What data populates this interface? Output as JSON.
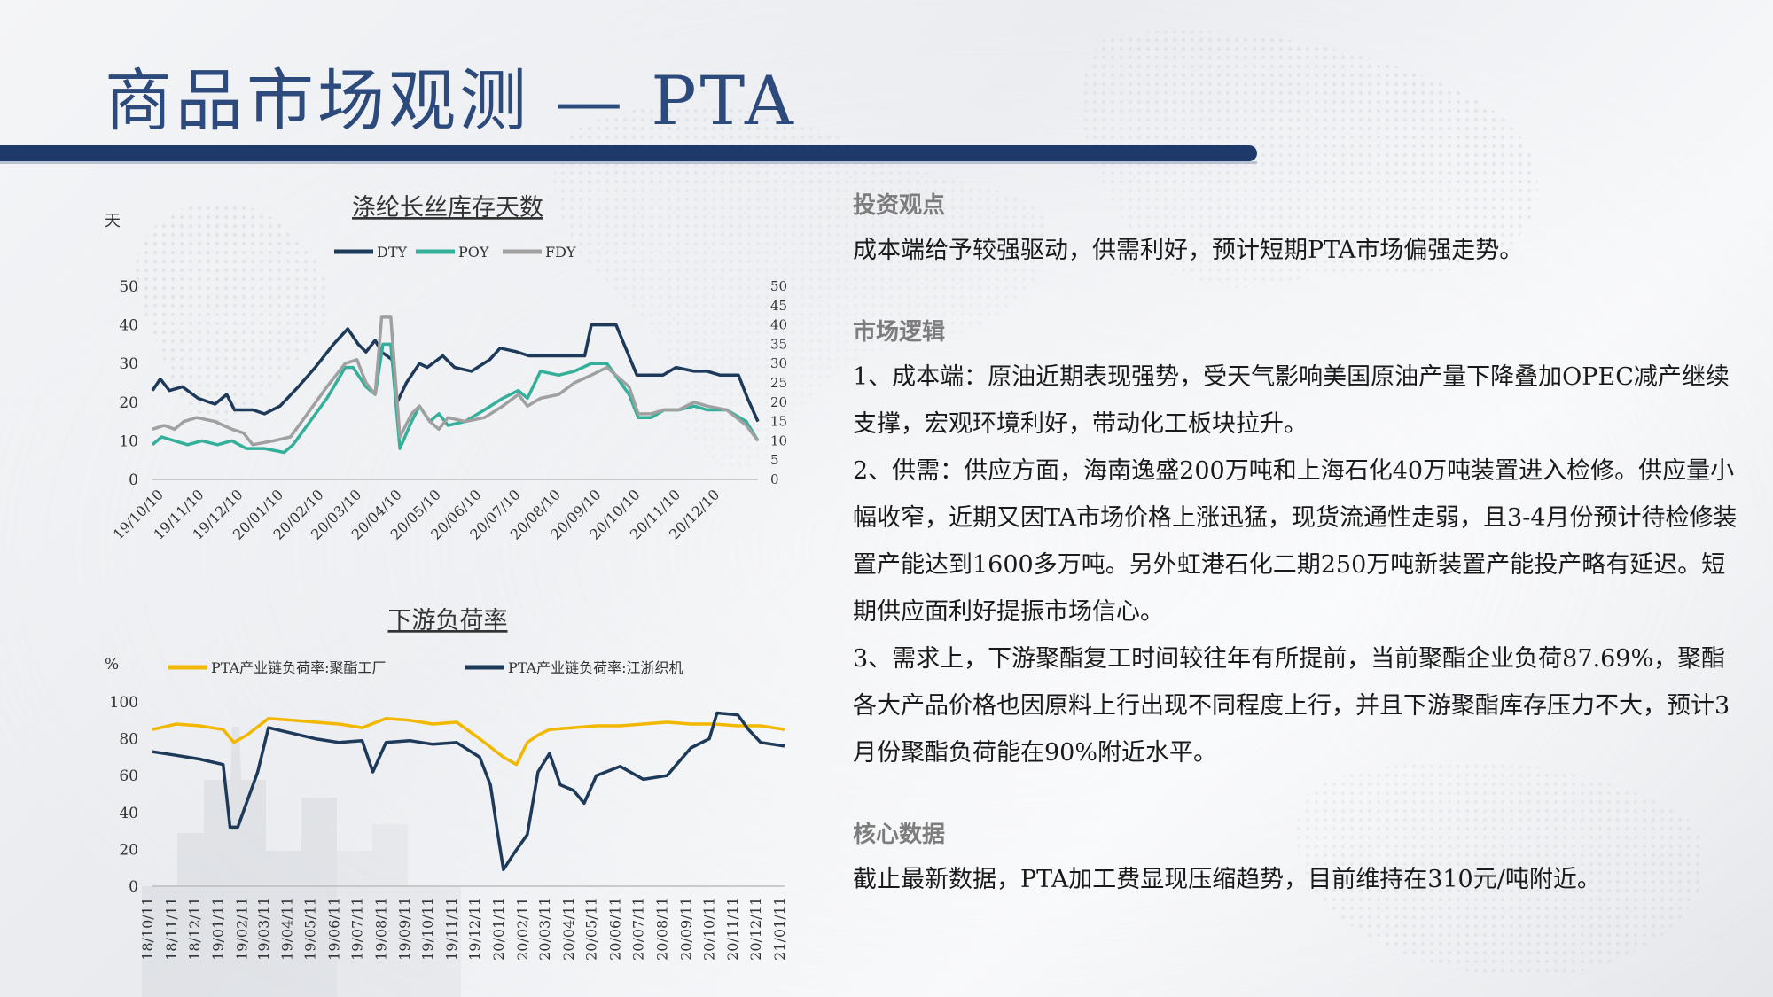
{
  "page": {
    "title": "商品市场观测 — PTA"
  },
  "chart_data": [
    {
      "type": "line",
      "title": "涤纶长丝库存天数",
      "ylabel": "天",
      "x_ticks": [
        "19/10/10",
        "19/11/10",
        "19/12/10",
        "20/01/10",
        "20/02/10",
        "20/03/10",
        "20/04/10",
        "20/05/10",
        "20/06/10",
        "20/07/10",
        "20/08/10",
        "20/09/10",
        "20/10/10",
        "20/11/10",
        "20/12/10"
      ],
      "x_range": [
        "2019-10-01",
        "2021-01-08"
      ],
      "ylim": [
        0,
        50
      ],
      "y_ticks": [
        "0",
        "10",
        "20",
        "30",
        "40",
        "50"
      ],
      "y2lim": [
        0,
        50
      ],
      "y2_ticks": [
        "0",
        "5",
        "10",
        "15",
        "20",
        "25",
        "30",
        "35",
        "40",
        "45",
        "50"
      ],
      "legend_position": "top",
      "series": [
        {
          "name": "DTY",
          "color": "#1e3a5a",
          "points": [
            [
              "2019-10-01",
              23
            ],
            [
              "2019-10-07",
              26
            ],
            [
              "2019-10-14",
              23
            ],
            [
              "2019-10-24",
              24
            ],
            [
              "2019-11-05",
              21
            ],
            [
              "2019-11-18",
              19.5
            ],
            [
              "2019-11-27",
              22
            ],
            [
              "2019-12-03",
              18
            ],
            [
              "2019-12-17",
              18
            ],
            [
              "2019-12-26",
              17
            ],
            [
              "2020-01-07",
              19
            ],
            [
              "2020-01-21",
              24
            ],
            [
              "2020-02-03",
              29
            ],
            [
              "2020-02-17",
              35
            ],
            [
              "2020-02-28",
              39
            ],
            [
              "2020-03-07",
              35
            ],
            [
              "2020-03-13",
              33
            ],
            [
              "2020-03-20",
              36
            ],
            [
              "2020-03-25",
              33
            ],
            [
              "2020-04-02",
              31
            ],
            [
              "2020-04-06",
              20
            ],
            [
              "2020-04-13",
              25
            ],
            [
              "2020-04-23",
              30
            ],
            [
              "2020-04-29",
              29
            ],
            [
              "2020-05-11",
              32
            ],
            [
              "2020-05-20",
              29
            ],
            [
              "2020-06-02",
              28
            ],
            [
              "2020-06-16",
              31
            ],
            [
              "2020-06-24",
              34
            ],
            [
              "2020-07-07",
              33
            ],
            [
              "2020-07-16",
              32
            ],
            [
              "2020-08-18",
              32
            ],
            [
              "2020-08-28",
              32
            ],
            [
              "2020-09-02",
              40
            ],
            [
              "2020-09-21",
              40
            ],
            [
              "2020-10-07",
              27
            ],
            [
              "2020-10-27",
              27
            ],
            [
              "2020-11-06",
              29
            ],
            [
              "2020-11-20",
              28
            ],
            [
              "2020-11-30",
              28
            ],
            [
              "2020-12-10",
              27
            ],
            [
              "2020-12-24",
              27
            ],
            [
              "2020-12-31",
              21
            ],
            [
              "2021-01-08",
              15
            ]
          ]
        },
        {
          "name": "POY",
          "color": "#34b09a",
          "points": [
            [
              "2019-10-01",
              9
            ],
            [
              "2019-10-08",
              11
            ],
            [
              "2019-10-18",
              10
            ],
            [
              "2019-10-28",
              9
            ],
            [
              "2019-11-08",
              10
            ],
            [
              "2019-11-20",
              9
            ],
            [
              "2019-12-01",
              10
            ],
            [
              "2019-12-12",
              8
            ],
            [
              "2019-12-26",
              8
            ],
            [
              "2020-01-10",
              7
            ],
            [
              "2020-01-17",
              9
            ],
            [
              "2020-01-30",
              15
            ],
            [
              "2020-02-12",
              21
            ],
            [
              "2020-02-26",
              29
            ],
            [
              "2020-03-03",
              29
            ],
            [
              "2020-03-13",
              24
            ],
            [
              "2020-03-20",
              22
            ],
            [
              "2020-03-26",
              35
            ],
            [
              "2020-04-01",
              35
            ],
            [
              "2020-04-08",
              8
            ],
            [
              "2020-04-17",
              15
            ],
            [
              "2020-04-23",
              19
            ],
            [
              "2020-05-01",
              15
            ],
            [
              "2020-05-08",
              17
            ],
            [
              "2020-05-15",
              14
            ],
            [
              "2020-05-28",
              15
            ],
            [
              "2020-06-12",
              18
            ],
            [
              "2020-06-26",
              21
            ],
            [
              "2020-07-08",
              23
            ],
            [
              "2020-07-15",
              21
            ],
            [
              "2020-07-25",
              28
            ],
            [
              "2020-08-08",
              27
            ],
            [
              "2020-08-20",
              28
            ],
            [
              "2020-09-02",
              30
            ],
            [
              "2020-09-14",
              30
            ],
            [
              "2020-10-01",
              22
            ],
            [
              "2020-10-08",
              16
            ],
            [
              "2020-10-18",
              16
            ],
            [
              "2020-10-28",
              18
            ],
            [
              "2020-11-08",
              18
            ],
            [
              "2020-11-20",
              19
            ],
            [
              "2020-11-30",
              18
            ],
            [
              "2020-12-15",
              18
            ],
            [
              "2020-12-30",
              15
            ],
            [
              "2021-01-08",
              10
            ]
          ]
        },
        {
          "name": "FDY",
          "color": "#a0a0a0",
          "points": [
            [
              "2019-10-01",
              13
            ],
            [
              "2019-10-10",
              14
            ],
            [
              "2019-10-18",
              13
            ],
            [
              "2019-10-25",
              15
            ],
            [
              "2019-11-04",
              16
            ],
            [
              "2019-11-18",
              15
            ],
            [
              "2019-12-01",
              13
            ],
            [
              "2019-12-10",
              12
            ],
            [
              "2019-12-17",
              9
            ],
            [
              "2020-01-02",
              10
            ],
            [
              "2020-01-15",
              11
            ],
            [
              "2020-01-28",
              17
            ],
            [
              "2020-02-12",
              24
            ],
            [
              "2020-02-26",
              30
            ],
            [
              "2020-03-06",
              31
            ],
            [
              "2020-03-13",
              25
            ],
            [
              "2020-03-20",
              22
            ],
            [
              "2020-03-25",
              42
            ],
            [
              "2020-04-01",
              42
            ],
            [
              "2020-04-08",
              11
            ],
            [
              "2020-04-17",
              17
            ],
            [
              "2020-04-23",
              19
            ],
            [
              "2020-05-01",
              15
            ],
            [
              "2020-05-08",
              13
            ],
            [
              "2020-05-15",
              16
            ],
            [
              "2020-05-28",
              15
            ],
            [
              "2020-06-12",
              16
            ],
            [
              "2020-06-26",
              19
            ],
            [
              "2020-07-08",
              22
            ],
            [
              "2020-07-15",
              19
            ],
            [
              "2020-07-25",
              21
            ],
            [
              "2020-08-08",
              22
            ],
            [
              "2020-08-20",
              25
            ],
            [
              "2020-09-02",
              27
            ],
            [
              "2020-09-14",
              29
            ],
            [
              "2020-10-01",
              24
            ],
            [
              "2020-10-08",
              17
            ],
            [
              "2020-10-18",
              17
            ],
            [
              "2020-10-28",
              18
            ],
            [
              "2020-11-08",
              18
            ],
            [
              "2020-11-20",
              20
            ],
            [
              "2020-11-30",
              19
            ],
            [
              "2020-12-15",
              18
            ],
            [
              "2020-12-30",
              14
            ],
            [
              "2021-01-08",
              10
            ]
          ]
        }
      ]
    },
    {
      "type": "line",
      "title": "下游负荷率",
      "ylabel": "%",
      "x_ticks": [
        "18/10/11",
        "18/11/11",
        "18/12/11",
        "19/01/11",
        "19/02/11",
        "19/03/11",
        "19/04/11",
        "19/05/11",
        "19/06/11",
        "19/07/11",
        "19/08/11",
        "19/09/11",
        "19/10/11",
        "19/11/11",
        "19/12/11",
        "20/01/11",
        "20/02/11",
        "20/03/11",
        "20/04/11",
        "20/05/11",
        "20/06/11",
        "20/07/11",
        "20/08/11",
        "20/09/11",
        "20/10/11",
        "20/11/11",
        "20/12/11",
        "21/01/11"
      ],
      "x_range": [
        "2018-10-11",
        "2021-01-11"
      ],
      "ylim": [
        0,
        100
      ],
      "y_ticks": [
        "0",
        "20",
        "40",
        "60",
        "80",
        "100"
      ],
      "legend_position": "top",
      "series": [
        {
          "name": "PTA产业链负荷率:聚酯工厂",
          "color": "#f2b800",
          "points": [
            [
              "2018-10-11",
              85
            ],
            [
              "2018-11-11",
              88
            ],
            [
              "2018-12-11",
              87
            ],
            [
              "2019-01-11",
              85
            ],
            [
              "2019-01-25",
              78
            ],
            [
              "2019-02-11",
              82
            ],
            [
              "2019-03-11",
              91
            ],
            [
              "2019-04-11",
              90
            ],
            [
              "2019-05-11",
              89
            ],
            [
              "2019-06-11",
              88
            ],
            [
              "2019-07-11",
              86
            ],
            [
              "2019-08-11",
              91
            ],
            [
              "2019-09-11",
              90
            ],
            [
              "2019-10-11",
              88
            ],
            [
              "2019-11-11",
              89
            ],
            [
              "2019-12-11",
              80
            ],
            [
              "2020-01-11",
              70
            ],
            [
              "2020-01-28",
              66
            ],
            [
              "2020-02-11",
              78
            ],
            [
              "2020-02-25",
              82
            ],
            [
              "2020-03-11",
              85
            ],
            [
              "2020-04-11",
              86
            ],
            [
              "2020-05-11",
              87
            ],
            [
              "2020-06-11",
              87
            ],
            [
              "2020-07-11",
              88
            ],
            [
              "2020-08-11",
              89
            ],
            [
              "2020-09-11",
              88
            ],
            [
              "2020-10-11",
              88
            ],
            [
              "2020-11-11",
              87
            ],
            [
              "2020-12-11",
              87
            ],
            [
              "2021-01-11",
              85
            ]
          ]
        },
        {
          "name": "PTA产业链负荷率:江浙织机",
          "color": "#1e3a5a",
          "points": [
            [
              "2018-10-11",
              73
            ],
            [
              "2018-11-11",
              71
            ],
            [
              "2018-12-11",
              69
            ],
            [
              "2019-01-11",
              66
            ],
            [
              "2019-01-20",
              32
            ],
            [
              "2019-01-30",
              32
            ],
            [
              "2019-02-25",
              62
            ],
            [
              "2019-03-11",
              86
            ],
            [
              "2019-04-11",
              83
            ],
            [
              "2019-05-11",
              80
            ],
            [
              "2019-06-11",
              78
            ],
            [
              "2019-07-11",
              79
            ],
            [
              "2019-07-25",
              62
            ],
            [
              "2019-08-11",
              78
            ],
            [
              "2019-09-11",
              79
            ],
            [
              "2019-10-11",
              77
            ],
            [
              "2019-11-11",
              78
            ],
            [
              "2019-12-11",
              70
            ],
            [
              "2019-12-25",
              55
            ],
            [
              "2020-01-03",
              30
            ],
            [
              "2020-01-11",
              9
            ],
            [
              "2020-01-25",
              18
            ],
            [
              "2020-02-11",
              28
            ],
            [
              "2020-02-25",
              62
            ],
            [
              "2020-03-11",
              72
            ],
            [
              "2020-03-25",
              55
            ],
            [
              "2020-04-11",
              52
            ],
            [
              "2020-04-25",
              45
            ],
            [
              "2020-05-11",
              60
            ],
            [
              "2020-06-11",
              65
            ],
            [
              "2020-07-11",
              58
            ],
            [
              "2020-08-11",
              60
            ],
            [
              "2020-09-11",
              75
            ],
            [
              "2020-10-05",
              80
            ],
            [
              "2020-10-15",
              94
            ],
            [
              "2020-11-11",
              93
            ],
            [
              "2020-11-25",
              85
            ],
            [
              "2020-12-11",
              78
            ],
            [
              "2021-01-11",
              76
            ]
          ]
        }
      ]
    }
  ],
  "sections": [
    {
      "heading": "投资观点",
      "paragraphs": [
        "成本端给予较强驱动，供需利好，预计短期PTA市场偏强走势。"
      ]
    },
    {
      "heading": "市场逻辑",
      "paragraphs": [
        "1、成本端：原油近期表现强势，受天气影响美国原油产量下降叠加OPEC减产继续支撑，宏观环境利好，带动化工板块拉升。",
        "2、供需：供应方面，海南逸盛200万吨和上海石化40万吨装置进入检修。供应量小幅收窄，近期又因TA市场价格上涨迅猛，现货流通性走弱，且3-4月份预计待检修装置产能达到1600多万吨。另外虹港石化二期250万吨新装置产能投产略有延迟。短期供应面利好提振市场信心。",
        "3、需求上，下游聚酯复工时间较往年有所提前，当前聚酯企业负荷87.69%，聚酯各大产品价格也因原料上行出现不同程度上行，并且下游聚酯库存压力不大，预计3月份聚酯负荷能在90%附近水平。"
      ]
    },
    {
      "heading": "核心数据",
      "paragraphs": [
        "截止最新数据，PTA加工费显现压缩趋势，目前维持在310元/吨附近。"
      ]
    }
  ]
}
